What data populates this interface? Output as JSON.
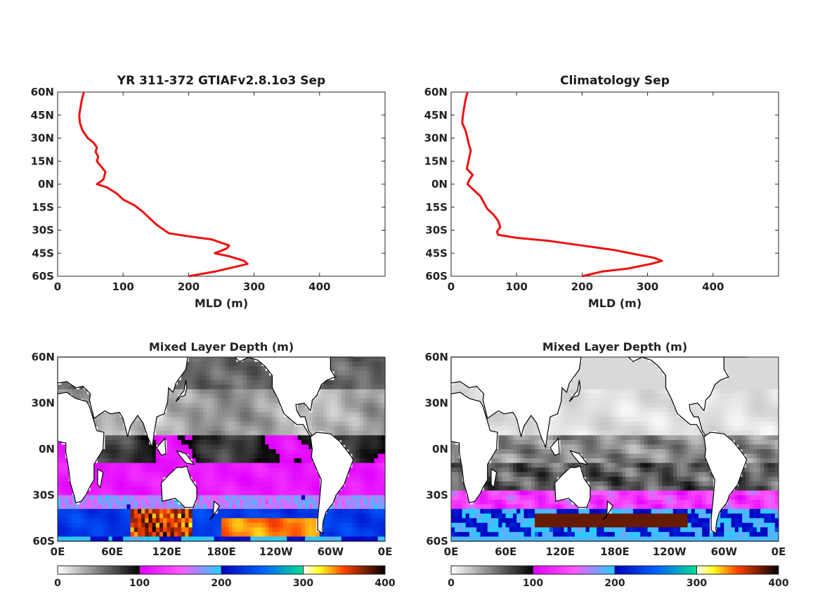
{
  "colors": {
    "profile_line": "#ee1111",
    "colormap": [
      "#ffffff",
      "#000000",
      "#ff00ff",
      "#00c8ff",
      "#0000a0",
      "#00d890",
      "#ffff30",
      "#ff3000",
      "#000000"
    ],
    "land": "#ffffff"
  },
  "chart_data": [
    {
      "type": "line",
      "panel": "top-left",
      "title": "YR 311-372 GTIAFv2.8.1o3 Sep",
      "xlabel": "MLD (m)",
      "ylabel": "",
      "xlim": [
        0,
        500
      ],
      "ylim": [
        -60,
        60
      ],
      "xticks": [
        "0",
        "100",
        "200",
        "300",
        "400"
      ],
      "yticks": [
        "60N",
        "45N",
        "30N",
        "15N",
        "0N",
        "15S",
        "30S",
        "45S",
        "60S"
      ],
      "series": [
        {
          "x": [
            40,
            37,
            35,
            33,
            34,
            38,
            46,
            55,
            60,
            58,
            62,
            60,
            73,
            70,
            60,
            75,
            90,
            100,
            118,
            130,
            140,
            150,
            163,
            170,
            200,
            235,
            262,
            258,
            240,
            262,
            285,
            290,
            270,
            240,
            200
          ],
          "y": [
            60,
            55,
            50,
            45,
            40,
            35,
            30,
            27,
            24,
            21,
            18,
            15,
            8,
            3,
            0,
            -2,
            -6,
            -10,
            -14,
            -18,
            -22,
            -26,
            -30,
            -32,
            -34,
            -36,
            -40,
            -42,
            -45,
            -47,
            -50,
            -52,
            -54,
            -57,
            -60
          ]
        }
      ]
    },
    {
      "type": "line",
      "panel": "top-right",
      "title": "Climatology Sep",
      "xlabel": "MLD (m)",
      "ylabel": "",
      "xlim": [
        0,
        500
      ],
      "ylim": [
        -60,
        60
      ],
      "xticks": [
        "0",
        "100",
        "200",
        "300",
        "400"
      ],
      "yticks": [
        "60N",
        "45N",
        "30N",
        "15N",
        "0N",
        "15S",
        "30S",
        "45S",
        "60S"
      ],
      "series": [
        {
          "x": [
            25,
            22,
            20,
            18,
            17,
            22,
            25,
            27,
            30,
            28,
            26,
            24,
            33,
            28,
            25,
            35,
            45,
            50,
            55,
            65,
            72,
            75,
            70,
            72,
            100,
            150,
            200,
            250,
            285,
            310,
            322,
            305,
            270,
            230,
            200
          ],
          "y": [
            60,
            55,
            50,
            45,
            40,
            35,
            30,
            26,
            22,
            18,
            14,
            10,
            6,
            3,
            0,
            -4,
            -8,
            -12,
            -16,
            -20,
            -24,
            -28,
            -31,
            -33,
            -35,
            -37,
            -40,
            -43,
            -46,
            -48,
            -50,
            -52,
            -55,
            -57,
            -60
          ]
        }
      ]
    },
    {
      "type": "heatmap",
      "panel": "bottom-left",
      "title": "Mixed Layer Depth (m)",
      "xticks": [
        "0E",
        "60E",
        "120E",
        "180E",
        "120W",
        "60W",
        "0E"
      ],
      "yticks": [
        "60N",
        "30N",
        "0N",
        "30S",
        "60S"
      ],
      "colorbar": {
        "min": 0,
        "max": 400,
        "ticks": [
          "0",
          "100",
          "200",
          "300",
          "400"
        ]
      },
      "regions": [
        {
          "lat": "40N-60N",
          "value": 60
        },
        {
          "lat": "10N-40N",
          "value": 40
        },
        {
          "lat": "10S-10N",
          "value": 80
        },
        {
          "lat": "10S-30S",
          "value": 120
        },
        {
          "lat": "30S-40S",
          "value": 180
        },
        {
          "lat": "40S-55S",
          "value": 300
        }
      ]
    },
    {
      "type": "heatmap",
      "panel": "bottom-right",
      "title": "Mixed Layer Depth (m)",
      "xticks": [
        "0E",
        "60E",
        "120E",
        "180E",
        "120W",
        "60W",
        "0E"
      ],
      "yticks": [
        "60N",
        "30N",
        "0N",
        "30S",
        "60S"
      ],
      "colorbar": {
        "min": 0,
        "max": 400,
        "ticks": [
          "0",
          "100",
          "200",
          "300",
          "400"
        ]
      },
      "regions": [
        {
          "lat": "40N-60N",
          "value": 20
        },
        {
          "lat": "10N-40N",
          "value": 15
        },
        {
          "lat": "10S-10N",
          "value": 50
        },
        {
          "lat": "10S-30S",
          "value": 70
        },
        {
          "lat": "30S-40S",
          "value": 140
        },
        {
          "lat": "40S-55S",
          "value": 280
        }
      ]
    }
  ]
}
